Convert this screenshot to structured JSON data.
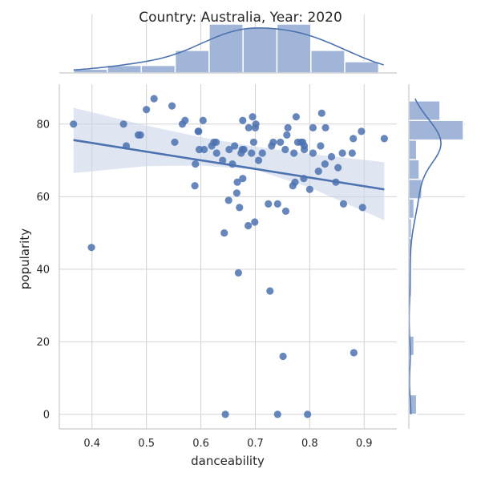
{
  "chart_data": {
    "type": "scatter",
    "title": "Country: Australia, Year: 2020",
    "xlabel": "danceability",
    "ylabel": "popularity",
    "xlim": [
      0.34,
      0.96
    ],
    "ylim": [
      -4,
      91
    ],
    "xticks": [
      0.4,
      0.5,
      0.6,
      0.7,
      0.8,
      0.9
    ],
    "yticks": [
      0,
      20,
      40,
      60,
      80
    ],
    "grid": true,
    "colors": {
      "point": "#4c72b0",
      "band": "#c9d6ea",
      "hist": "#a1b5d8",
      "hist_edge": "#ffffff"
    },
    "regression": {
      "start": [
        0.366,
        75.6
      ],
      "end": [
        0.937,
        62.0
      ],
      "ci_upper": [
        [
          0.366,
          84.5
        ],
        [
          0.5,
          79.6
        ],
        [
          0.6,
          76.4
        ],
        [
          0.7,
          73.8
        ],
        [
          0.8,
          71.8
        ],
        [
          0.937,
          69.5
        ]
      ],
      "ci_lower": [
        [
          0.366,
          66.5
        ],
        [
          0.5,
          68.4
        ],
        [
          0.6,
          68.6
        ],
        [
          0.7,
          67.4
        ],
        [
          0.8,
          62.5
        ],
        [
          0.937,
          53.5
        ]
      ]
    },
    "points": [
      [
        0.366,
        80
      ],
      [
        0.399,
        46
      ],
      [
        0.458,
        80
      ],
      [
        0.463,
        74
      ],
      [
        0.485,
        77
      ],
      [
        0.489,
        77
      ],
      [
        0.5,
        84
      ],
      [
        0.514,
        87
      ],
      [
        0.547,
        85
      ],
      [
        0.552,
        75
      ],
      [
        0.566,
        80
      ],
      [
        0.571,
        81
      ],
      [
        0.589,
        63
      ],
      [
        0.59,
        69
      ],
      [
        0.595,
        78
      ],
      [
        0.596,
        78
      ],
      [
        0.597,
        73
      ],
      [
        0.604,
        81
      ],
      [
        0.606,
        73
      ],
      [
        0.62,
        74
      ],
      [
        0.624,
        75
      ],
      [
        0.628,
        75
      ],
      [
        0.629,
        72
      ],
      [
        0.64,
        70
      ],
      [
        0.643,
        50
      ],
      [
        0.651,
        59
      ],
      [
        0.652,
        73
      ],
      [
        0.658,
        69
      ],
      [
        0.662,
        74
      ],
      [
        0.666,
        61
      ],
      [
        0.667,
        64
      ],
      [
        0.669,
        39
      ],
      [
        0.671,
        57
      ],
      [
        0.674,
        72
      ],
      [
        0.676,
        73
      ],
      [
        0.677,
        81
      ],
      [
        0.677,
        65
      ],
      [
        0.679,
        73
      ],
      [
        0.687,
        52
      ],
      [
        0.688,
        79
      ],
      [
        0.693,
        72
      ],
      [
        0.695,
        82
      ],
      [
        0.697,
        75
      ],
      [
        0.699,
        53
      ],
      [
        0.7,
        79
      ],
      [
        0.701,
        80
      ],
      [
        0.706,
        70
      ],
      [
        0.713,
        72
      ],
      [
        0.724,
        58
      ],
      [
        0.727,
        34
      ],
      [
        0.73,
        74
      ],
      [
        0.733,
        75
      ],
      [
        0.741,
        58
      ],
      [
        0.746,
        75
      ],
      [
        0.751,
        16
      ],
      [
        0.755,
        73
      ],
      [
        0.756,
        56
      ],
      [
        0.758,
        77
      ],
      [
        0.76,
        79
      ],
      [
        0.769,
        63
      ],
      [
        0.771,
        72
      ],
      [
        0.773,
        64
      ],
      [
        0.775,
        82
      ],
      [
        0.778,
        75
      ],
      [
        0.784,
        75
      ],
      [
        0.787,
        75
      ],
      [
        0.789,
        65
      ],
      [
        0.79,
        74
      ],
      [
        0.79,
        73
      ],
      [
        0.8,
        62
      ],
      [
        0.806,
        79
      ],
      [
        0.806,
        72
      ],
      [
        0.816,
        67
      ],
      [
        0.82,
        74
      ],
      [
        0.822,
        83
      ],
      [
        0.828,
        69
      ],
      [
        0.829,
        79
      ],
      [
        0.84,
        71
      ],
      [
        0.848,
        64
      ],
      [
        0.852,
        68
      ],
      [
        0.86,
        72
      ],
      [
        0.862,
        58
      ],
      [
        0.878,
        72
      ],
      [
        0.88,
        76
      ],
      [
        0.881,
        17
      ],
      [
        0.895,
        78
      ],
      [
        0.897,
        57
      ],
      [
        0.937,
        76
      ],
      [
        0.645,
        0
      ],
      [
        0.741,
        0
      ],
      [
        0.796,
        0
      ]
    ],
    "x_hist": {
      "edges": [
        0.366,
        0.4283,
        0.4906,
        0.5529,
        0.6152,
        0.6775,
        0.7398,
        0.8021,
        0.8644,
        0.9267
      ],
      "counts": [
        1,
        2,
        2,
        6,
        13,
        12,
        13,
        6,
        3
      ]
    },
    "x_hist_top": 0.937,
    "y_hist": {
      "edges": [
        0,
        5.4,
        10.8,
        16.2,
        21.6,
        27,
        32.4,
        37.8,
        43.2,
        48.6,
        54,
        59.4,
        64.8,
        70.2,
        75.6,
        81,
        86.4
      ],
      "counts": [
        3,
        0,
        0,
        2,
        0,
        0,
        1,
        1,
        1,
        1,
        2,
        5,
        4,
        3,
        21,
        12,
        2
      ]
    }
  }
}
